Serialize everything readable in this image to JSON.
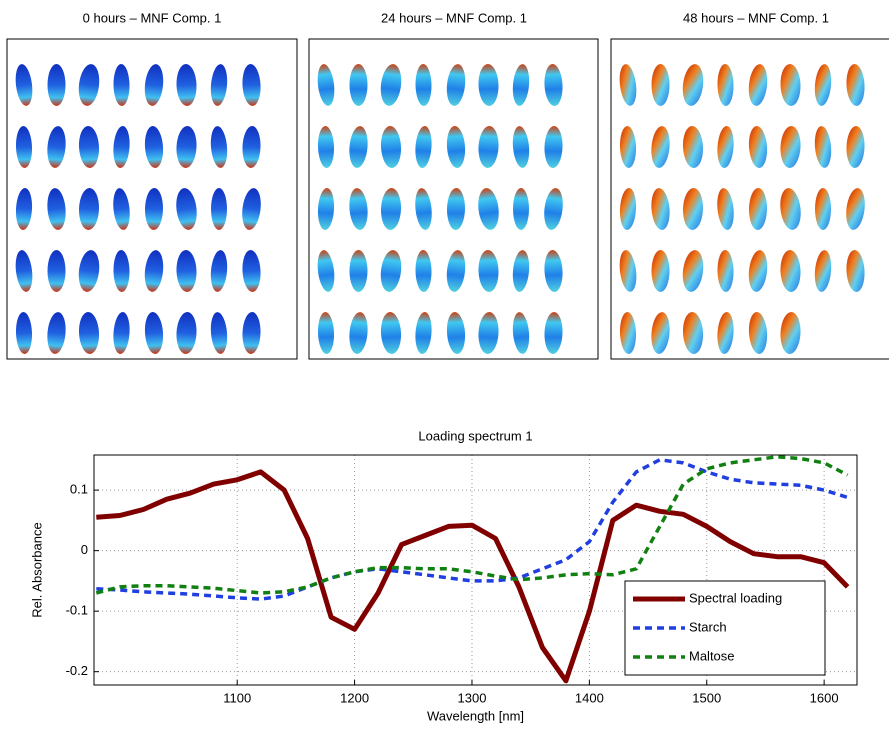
{
  "image_panels": [
    {
      "title": "0 hours – MNF Comp. 1"
    },
    {
      "title": "24 hours – MNF Comp. 1"
    },
    {
      "title": "48 hours – MNF Comp. 1"
    }
  ],
  "chart_data": {
    "type": "line",
    "title": "Loading spectrum 1",
    "x_label": "Wavelength [nm]",
    "y_label": "Rel. Absorbance",
    "x": [
      980,
      1000,
      1020,
      1040,
      1060,
      1080,
      1100,
      1120,
      1140,
      1160,
      1180,
      1200,
      1220,
      1240,
      1260,
      1280,
      1300,
      1320,
      1340,
      1360,
      1380,
      1400,
      1420,
      1440,
      1460,
      1480,
      1500,
      1520,
      1540,
      1560,
      1580,
      1600,
      1620
    ],
    "series": [
      {
        "name": "Spectral loading",
        "color": "#800000",
        "dash": false,
        "values": [
          0.055,
          0.058,
          0.068,
          0.085,
          0.095,
          0.11,
          0.117,
          0.13,
          0.1,
          0.02,
          -0.11,
          -0.13,
          -0.07,
          0.01,
          0.025,
          0.04,
          0.042,
          0.02,
          -0.06,
          -0.16,
          -0.215,
          -0.1,
          0.05,
          0.075,
          0.065,
          0.06,
          0.04,
          0.015,
          -0.005,
          -0.01,
          -0.01,
          -0.02,
          -0.06
        ]
      },
      {
        "name": "Starch",
        "color": "#1f3fe0",
        "dash": true,
        "values": [
          -0.063,
          -0.065,
          -0.068,
          -0.07,
          -0.072,
          -0.075,
          -0.078,
          -0.08,
          -0.075,
          -0.06,
          -0.045,
          -0.035,
          -0.03,
          -0.035,
          -0.04,
          -0.045,
          -0.05,
          -0.05,
          -0.045,
          -0.03,
          -0.015,
          0.015,
          0.08,
          0.13,
          0.15,
          0.145,
          0.13,
          0.118,
          0.112,
          0.11,
          0.108,
          0.1,
          0.088
        ]
      },
      {
        "name": "Maltose",
        "color": "#108010",
        "dash": true,
        "values": [
          -0.07,
          -0.06,
          -0.058,
          -0.058,
          -0.06,
          -0.062,
          -0.066,
          -0.07,
          -0.068,
          -0.06,
          -0.045,
          -0.035,
          -0.028,
          -0.028,
          -0.03,
          -0.03,
          -0.035,
          -0.042,
          -0.048,
          -0.045,
          -0.04,
          -0.038,
          -0.04,
          -0.03,
          0.04,
          0.11,
          0.135,
          0.145,
          0.15,
          0.155,
          0.152,
          0.145,
          0.125
        ]
      }
    ],
    "xlim": [
      978,
      1628
    ],
    "xticks": [
      1100,
      1200,
      1300,
      1400,
      1500,
      1600
    ],
    "ylim": [
      -0.222,
      0.158
    ],
    "yticks": [
      -0.2,
      -0.1,
      0,
      0.1
    ],
    "grid": true,
    "legend": "lower right"
  }
}
